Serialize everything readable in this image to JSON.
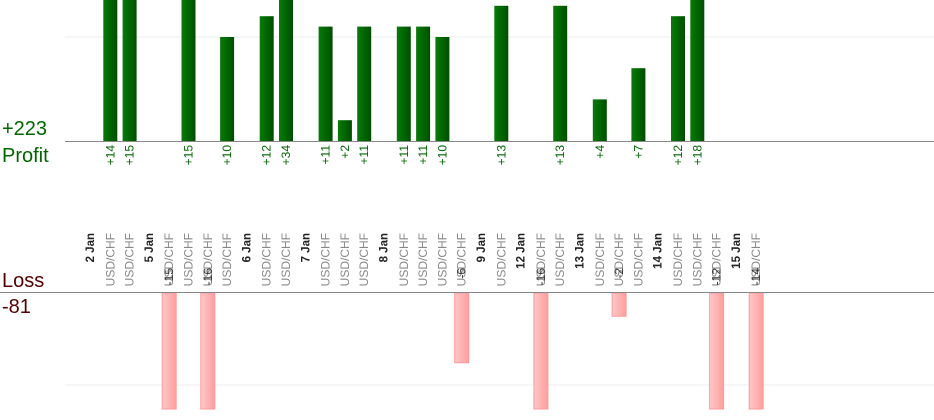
{
  "summary": {
    "profit_label": "Profit",
    "profit_total": "+223",
    "loss_label": "Loss",
    "loss_total": "-81"
  },
  "colors": {
    "profit": "#006600",
    "loss": "#ffb6b6",
    "date_text": "#222222",
    "pair_text": "#888888",
    "axis": "#888888"
  },
  "chart_data": {
    "type": "bar",
    "title": "",
    "profit_scale_max": 14,
    "loss_scale_max": 15,
    "days": [
      {
        "date": "2 Jan",
        "trades": [
          {
            "pair": "USD/CHF",
            "value": 14,
            "label": "+14"
          },
          {
            "pair": "USD/CHF",
            "value": 15,
            "label": "+15"
          }
        ]
      },
      {
        "date": "5 Jan",
        "trades": [
          {
            "pair": "USD/CHF",
            "value": -15,
            "label": "-15"
          },
          {
            "pair": "USD/CHF",
            "value": 15,
            "label": "+15"
          },
          {
            "pair": "USD/CHF",
            "value": -16,
            "label": "-16"
          },
          {
            "pair": "USD/CHF",
            "value": 10,
            "label": "+10"
          }
        ]
      },
      {
        "date": "6 Jan",
        "trades": [
          {
            "pair": "USD/CHF",
            "value": 12,
            "label": "+12"
          },
          {
            "pair": "USD/CHF",
            "value": 34,
            "label": "+34"
          }
        ]
      },
      {
        "date": "7 Jan",
        "trades": [
          {
            "pair": "USD/CHF",
            "value": 11,
            "label": "+11"
          },
          {
            "pair": "USD/CHF",
            "value": 2,
            "label": "+2"
          },
          {
            "pair": "USD/CHF",
            "value": 11,
            "label": "+11"
          }
        ]
      },
      {
        "date": "8 Jan",
        "trades": [
          {
            "pair": "USD/CHF",
            "value": 11,
            "label": "+11"
          },
          {
            "pair": "USD/CHF",
            "value": 11,
            "label": "+11"
          },
          {
            "pair": "USD/CHF",
            "value": 10,
            "label": "+10"
          },
          {
            "pair": "USD/CHF",
            "value": -6,
            "label": "-6"
          }
        ]
      },
      {
        "date": "9 Jan",
        "trades": [
          {
            "pair": "USD/CHF",
            "value": 13,
            "label": "+13"
          }
        ]
      },
      {
        "date": "12 Jan",
        "trades": [
          {
            "pair": "USD/CHF",
            "value": -16,
            "label": "-16"
          },
          {
            "pair": "USD/CHF",
            "value": 13,
            "label": "+13"
          }
        ]
      },
      {
        "date": "13 Jan",
        "trades": [
          {
            "pair": "USD/CHF",
            "value": 4,
            "label": "+4"
          },
          {
            "pair": "USD/CHF",
            "value": -2,
            "label": "-2"
          },
          {
            "pair": "USD/CHF",
            "value": 7,
            "label": "+7"
          }
        ]
      },
      {
        "date": "14 Jan",
        "trades": [
          {
            "pair": "USD/CHF",
            "value": 12,
            "label": "+12"
          },
          {
            "pair": "USD/CHF",
            "value": 18,
            "label": "+18"
          },
          {
            "pair": "USD/CHF",
            "value": -12,
            "label": "-12"
          }
        ]
      },
      {
        "date": "15 Jan",
        "trades": [
          {
            "pair": "USD/CHF",
            "value": -14,
            "label": "-14"
          }
        ]
      }
    ]
  }
}
